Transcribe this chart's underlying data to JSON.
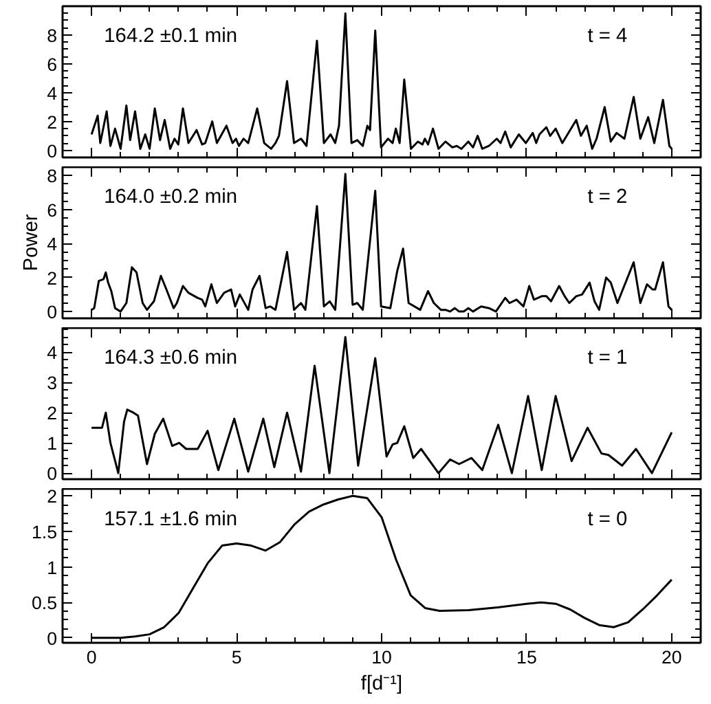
{
  "chart_data": [
    {
      "type": "line",
      "tick_labels": "y",
      "xlim": [
        -1,
        21
      ],
      "xticks": [
        0,
        5,
        10,
        15,
        20
      ],
      "ylim": [
        -0.5,
        10
      ],
      "yticks": [
        0,
        2,
        4,
        6,
        8
      ],
      "annotations": [
        "164.2 ±0.1 min",
        "t = 4"
      ],
      "x": [
        0,
        0.21,
        0.3,
        0.52,
        0.65,
        0.81,
        1.0,
        1.2,
        1.33,
        1.5,
        1.68,
        1.85,
        2.0,
        2.18,
        2.36,
        2.52,
        2.71,
        2.86,
        2.99,
        3.15,
        3.34,
        3.62,
        3.81,
        3.92,
        4.16,
        4.32,
        4.65,
        4.86,
        4.98,
        5.08,
        5.24,
        5.4,
        5.71,
        5.95,
        6.19,
        6.34,
        6.46,
        6.74,
        6.98,
        7.22,
        7.41,
        7.77,
        8.01,
        8.24,
        8.4,
        8.53,
        8.75,
        8.96,
        9.16,
        9.35,
        9.51,
        9.6,
        9.78,
        9.98,
        10.22,
        10.38,
        10.49,
        10.62,
        10.78,
        11.01,
        11.25,
        11.41,
        11.49,
        11.6,
        11.77,
        11.96,
        12.2,
        12.44,
        12.59,
        12.75,
        12.99,
        13.15,
        13.31,
        13.47,
        13.7,
        13.97,
        14.1,
        14.26,
        14.45,
        14.73,
        14.97,
        15.21,
        15.33,
        15.44,
        15.68,
        15.81,
        16.0,
        16.23,
        16.71,
        16.87,
        17.07,
        17.26,
        17.41,
        17.69,
        17.9,
        18.1,
        18.37,
        18.69,
        18.92,
        19.19,
        19.4,
        19.7,
        19.92,
        20.0
      ],
      "series": [
        {
          "color": "#000000",
          "values": [
            1.1,
            2.4,
            0.5,
            2.7,
            0.3,
            1.5,
            0.1,
            3.1,
            0.7,
            2.7,
            0.1,
            1.1,
            0.1,
            2.9,
            0.7,
            2.1,
            0.1,
            0.8,
            0.4,
            2.9,
            0.5,
            1.4,
            0.4,
            0.5,
            2.0,
            0.5,
            1.7,
            0.5,
            0.8,
            0.3,
            0.8,
            0.5,
            2.9,
            0.5,
            0.1,
            0.5,
            1.0,
            4.8,
            0.5,
            0.8,
            0.3,
            7.6,
            0.5,
            1.1,
            0.5,
            1.7,
            9.5,
            0.5,
            0.7,
            0.3,
            1.7,
            1.4,
            8.3,
            0.2,
            0.8,
            0.5,
            1.5,
            0.5,
            4.9,
            0.1,
            0.6,
            0.4,
            0.8,
            0.4,
            1.5,
            0.1,
            0.6,
            0.2,
            0.3,
            0.1,
            0.6,
            0.2,
            1.0,
            0.1,
            0.3,
            0.8,
            0.5,
            1.3,
            0.2,
            1.1,
            0.5,
            1.2,
            0.5,
            1.1,
            1.6,
            1.0,
            1.5,
            0.5,
            2.1,
            1.0,
            1.7,
            0.1,
            0.8,
            3.0,
            0.6,
            1.2,
            0.8,
            3.7,
            0.8,
            2.3,
            0.5,
            3.5,
            0.3,
            0.1
          ]
        }
      ]
    },
    {
      "type": "line",
      "tick_labels": "y",
      "ylabel": "Power",
      "xlim": [
        -1,
        21
      ],
      "xticks": [
        0,
        5,
        10,
        15,
        20
      ],
      "ylim": [
        -0.4,
        8.5
      ],
      "yticks": [
        0,
        2,
        4,
        6,
        8
      ],
      "annotations": [
        "164.0 ±0.2 min",
        "t = 2"
      ],
      "x": [
        0,
        0.09,
        0.25,
        0.41,
        0.49,
        0.57,
        0.68,
        0.81,
        1.0,
        1.2,
        1.39,
        1.55,
        1.76,
        1.91,
        2.15,
        2.39,
        2.58,
        2.83,
        2.94,
        3.15,
        3.34,
        3.66,
        3.81,
        3.92,
        4.13,
        4.32,
        4.57,
        4.81,
        4.95,
        5.11,
        5.4,
        5.55,
        5.79,
        6.0,
        6.16,
        6.34,
        6.74,
        6.98,
        7.22,
        7.37,
        7.77,
        8.01,
        8.21,
        8.4,
        8.75,
        9.0,
        9.16,
        9.35,
        9.78,
        9.98,
        10.3,
        10.54,
        10.74,
        10.93,
        11.33,
        11.6,
        11.8,
        12.04,
        12.2,
        12.36,
        12.52,
        12.67,
        12.83,
        12.99,
        13.15,
        13.43,
        13.7,
        13.94,
        14.26,
        14.41,
        14.65,
        14.89,
        15.09,
        15.25,
        15.52,
        15.68,
        15.84,
        16.12,
        16.31,
        16.47,
        16.71,
        16.91,
        17.17,
        17.34,
        17.5,
        17.74,
        17.9,
        18.13,
        18.69,
        18.92,
        19.15,
        19.34,
        19.43,
        19.7,
        19.89,
        20.0
      ],
      "series": [
        {
          "color": "#000000",
          "values": [
            0.1,
            0.2,
            1.8,
            1.9,
            2.3,
            1.7,
            1.2,
            0.2,
            0.0,
            0.5,
            2.6,
            2.3,
            0.5,
            0.1,
            0.6,
            2.1,
            1.3,
            0.2,
            0.5,
            1.5,
            1.1,
            0.8,
            0.7,
            0.3,
            1.6,
            0.5,
            1.1,
            1.3,
            0.3,
            1.0,
            0.1,
            1.3,
            2.1,
            0.2,
            0.3,
            0.1,
            3.5,
            0.1,
            0.5,
            0.1,
            6.2,
            0.3,
            0.6,
            0.1,
            8.1,
            0.4,
            0.5,
            0.1,
            7.1,
            0.3,
            0.2,
            2.4,
            3.7,
            0.5,
            0.1,
            1.2,
            0.5,
            0.1,
            0.1,
            0.0,
            0.2,
            0.0,
            0.0,
            0.2,
            0.0,
            0.3,
            0.2,
            0.0,
            0.8,
            0.5,
            0.7,
            0.3,
            1.5,
            0.7,
            0.9,
            0.9,
            0.6,
            1.5,
            0.9,
            0.5,
            0.9,
            1.0,
            1.7,
            0.6,
            0.1,
            2.0,
            1.7,
            0.5,
            2.9,
            0.5,
            1.6,
            1.3,
            1.3,
            2.9,
            0.3,
            0.1
          ]
        }
      ]
    },
    {
      "type": "line",
      "tick_labels": "y",
      "xlim": [
        -1,
        21
      ],
      "xticks": [
        0,
        5,
        10,
        15,
        20
      ],
      "ylim": [
        -0.2,
        4.8
      ],
      "yticks": [
        0,
        1,
        2,
        3,
        4
      ],
      "annotations": [
        "164.3 ±0.6 min",
        "t = 1"
      ],
      "x": [
        0,
        0.25,
        0.36,
        0.49,
        0.65,
        0.92,
        1.12,
        1.23,
        1.44,
        1.6,
        1.91,
        2.18,
        2.47,
        2.78,
        3.02,
        3.26,
        3.66,
        4.0,
        4.37,
        4.92,
        5.4,
        5.92,
        6.3,
        6.74,
        7.22,
        7.69,
        8.2,
        8.75,
        9.19,
        9.78,
        10.17,
        10.38,
        10.54,
        10.78,
        11.09,
        11.36,
        11.96,
        12.36,
        12.67,
        13.1,
        13.47,
        14.02,
        14.49,
        15.05,
        15.52,
        16.0,
        16.55,
        17.1,
        17.58,
        17.82,
        18.29,
        18.77,
        19.32,
        20.0
      ],
      "series": [
        {
          "color": "#000000",
          "values": [
            1.5,
            1.5,
            1.5,
            2.0,
            1.0,
            0.0,
            1.7,
            2.1,
            2.0,
            1.9,
            0.3,
            1.3,
            1.8,
            0.9,
            1.0,
            0.8,
            0.8,
            1.4,
            0.1,
            1.8,
            0.05,
            1.8,
            0.2,
            2.0,
            0.05,
            3.55,
            0.0,
            4.5,
            0.25,
            3.8,
            0.55,
            0.95,
            1.0,
            1.55,
            0.5,
            0.8,
            0.0,
            0.45,
            0.3,
            0.5,
            0.1,
            1.6,
            0.0,
            2.55,
            0.1,
            2.55,
            0.4,
            1.5,
            0.65,
            0.6,
            0.25,
            0.8,
            0.0,
            1.35
          ]
        }
      ]
    },
    {
      "type": "line",
      "xlabel": "f[d⁻¹]",
      "xlim": [
        -1,
        21
      ],
      "xticks": [
        0,
        5,
        10,
        15,
        20
      ],
      "ylim": [
        -0.07,
        2.1
      ],
      "yticks": [
        0,
        {
          "value": 0.5,
          "label": "0.5"
        },
        1,
        {
          "value": 1.5,
          "label": "1.5"
        },
        2
      ],
      "annotations": [
        "157.1 ±1.6 min",
        "t = 0"
      ],
      "x": [
        0,
        1,
        1.5,
        2,
        2.5,
        3,
        3.5,
        4,
        4.5,
        5,
        5.5,
        6,
        6.5,
        7,
        7.5,
        8,
        8.5,
        9,
        9.5,
        10,
        10.5,
        11,
        11.5,
        12,
        13,
        14,
        15,
        15.5,
        16,
        16.5,
        17,
        17.5,
        18,
        18.5,
        19,
        19.5,
        20
      ],
      "series": [
        {
          "color": "#000000",
          "values": [
            0.0,
            0.0,
            0.02,
            0.05,
            0.15,
            0.35,
            0.7,
            1.05,
            1.3,
            1.33,
            1.3,
            1.23,
            1.35,
            1.6,
            1.78,
            1.88,
            1.95,
            2.0,
            1.97,
            1.7,
            1.1,
            0.6,
            0.42,
            0.38,
            0.39,
            0.43,
            0.48,
            0.5,
            0.48,
            0.4,
            0.28,
            0.18,
            0.15,
            0.22,
            0.4,
            0.6,
            0.82
          ]
        }
      ]
    }
  ]
}
